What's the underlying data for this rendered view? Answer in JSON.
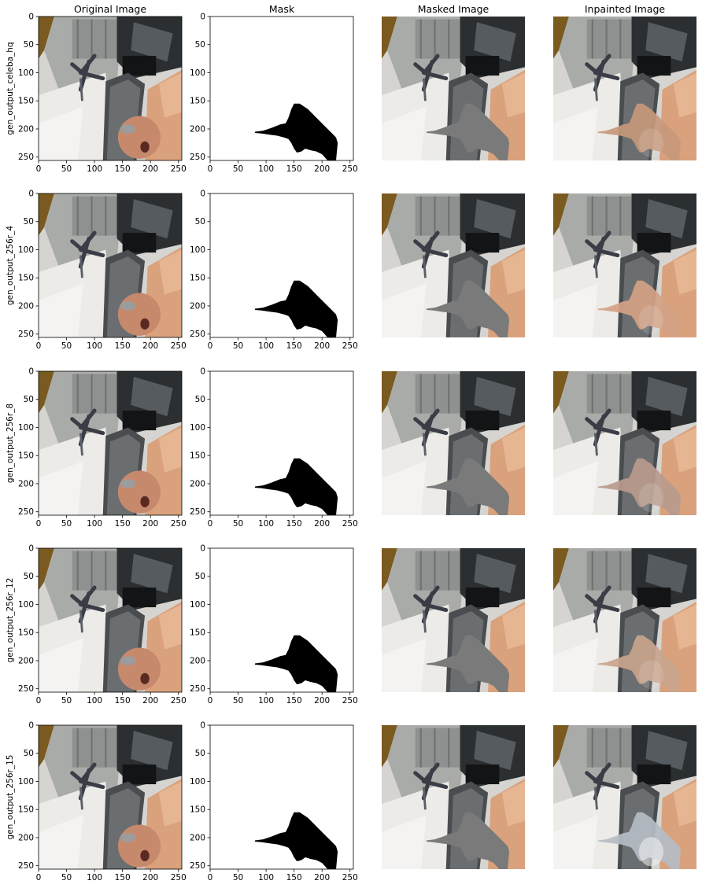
{
  "column_titles": [
    "Original Image",
    "Mask",
    "Masked Image",
    "Inpainted Image"
  ],
  "row_labels": [
    "gen_output_celeba_hq",
    "gen_output_256r_4",
    "gen_output_256r_8",
    "gen_output_256r_12",
    "gen_output_256r_15"
  ],
  "axes": {
    "y_ticks": [
      0,
      50,
      100,
      150,
      200,
      250
    ],
    "x_ticks": [
      0,
      50,
      100,
      150,
      200,
      250
    ],
    "x_range": [
      0,
      256
    ],
    "y_range": [
      256,
      0
    ]
  },
  "mask_color": "#000000",
  "fill_color": "#7a7a7a"
}
